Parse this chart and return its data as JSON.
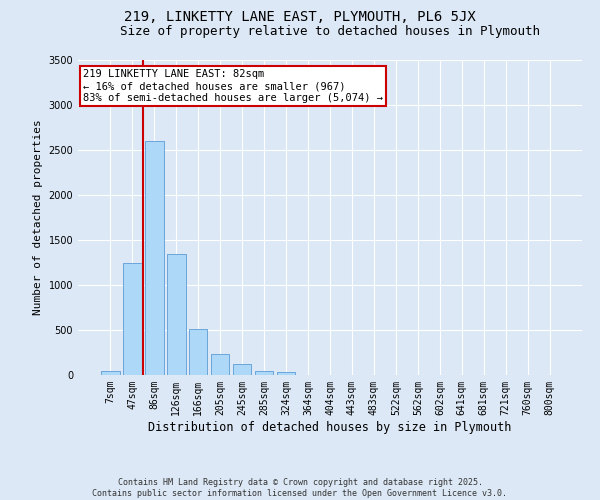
{
  "title1": "219, LINKETTY LANE EAST, PLYMOUTH, PL6 5JX",
  "title2": "Size of property relative to detached houses in Plymouth",
  "xlabel": "Distribution of detached houses by size in Plymouth",
  "ylabel": "Number of detached properties",
  "categories": [
    "7sqm",
    "47sqm",
    "86sqm",
    "126sqm",
    "166sqm",
    "205sqm",
    "245sqm",
    "285sqm",
    "324sqm",
    "364sqm",
    "404sqm",
    "443sqm",
    "483sqm",
    "522sqm",
    "562sqm",
    "602sqm",
    "641sqm",
    "681sqm",
    "721sqm",
    "760sqm",
    "800sqm"
  ],
  "values": [
    50,
    1250,
    2600,
    1350,
    510,
    230,
    120,
    50,
    30,
    5,
    2,
    0,
    0,
    0,
    0,
    0,
    0,
    0,
    0,
    0,
    0
  ],
  "bar_color": "#add8f7",
  "bar_edge_color": "#5b9bd5",
  "vline_x": 1.5,
  "vline_color": "#cc0000",
  "annotation_line1": "219 LINKETTY LANE EAST: 82sqm",
  "annotation_line2": "← 16% of detached houses are smaller (967)",
  "annotation_line3": "83% of semi-detached houses are larger (5,074) →",
  "annotation_box_color": "#cc0000",
  "ylim": [
    0,
    3500
  ],
  "yticks": [
    0,
    500,
    1000,
    1500,
    2000,
    2500,
    3000,
    3500
  ],
  "bg_color": "#dce8f5",
  "plot_bg_color": "#dce8f5",
  "grid_color": "#ffffff",
  "footnote": "Contains HM Land Registry data © Crown copyright and database right 2025.\nContains public sector information licensed under the Open Government Licence v3.0.",
  "title1_fontsize": 10,
  "title2_fontsize": 9,
  "xlabel_fontsize": 8.5,
  "ylabel_fontsize": 8,
  "tick_fontsize": 7,
  "annotation_fontsize": 7.5,
  "footnote_fontsize": 6
}
